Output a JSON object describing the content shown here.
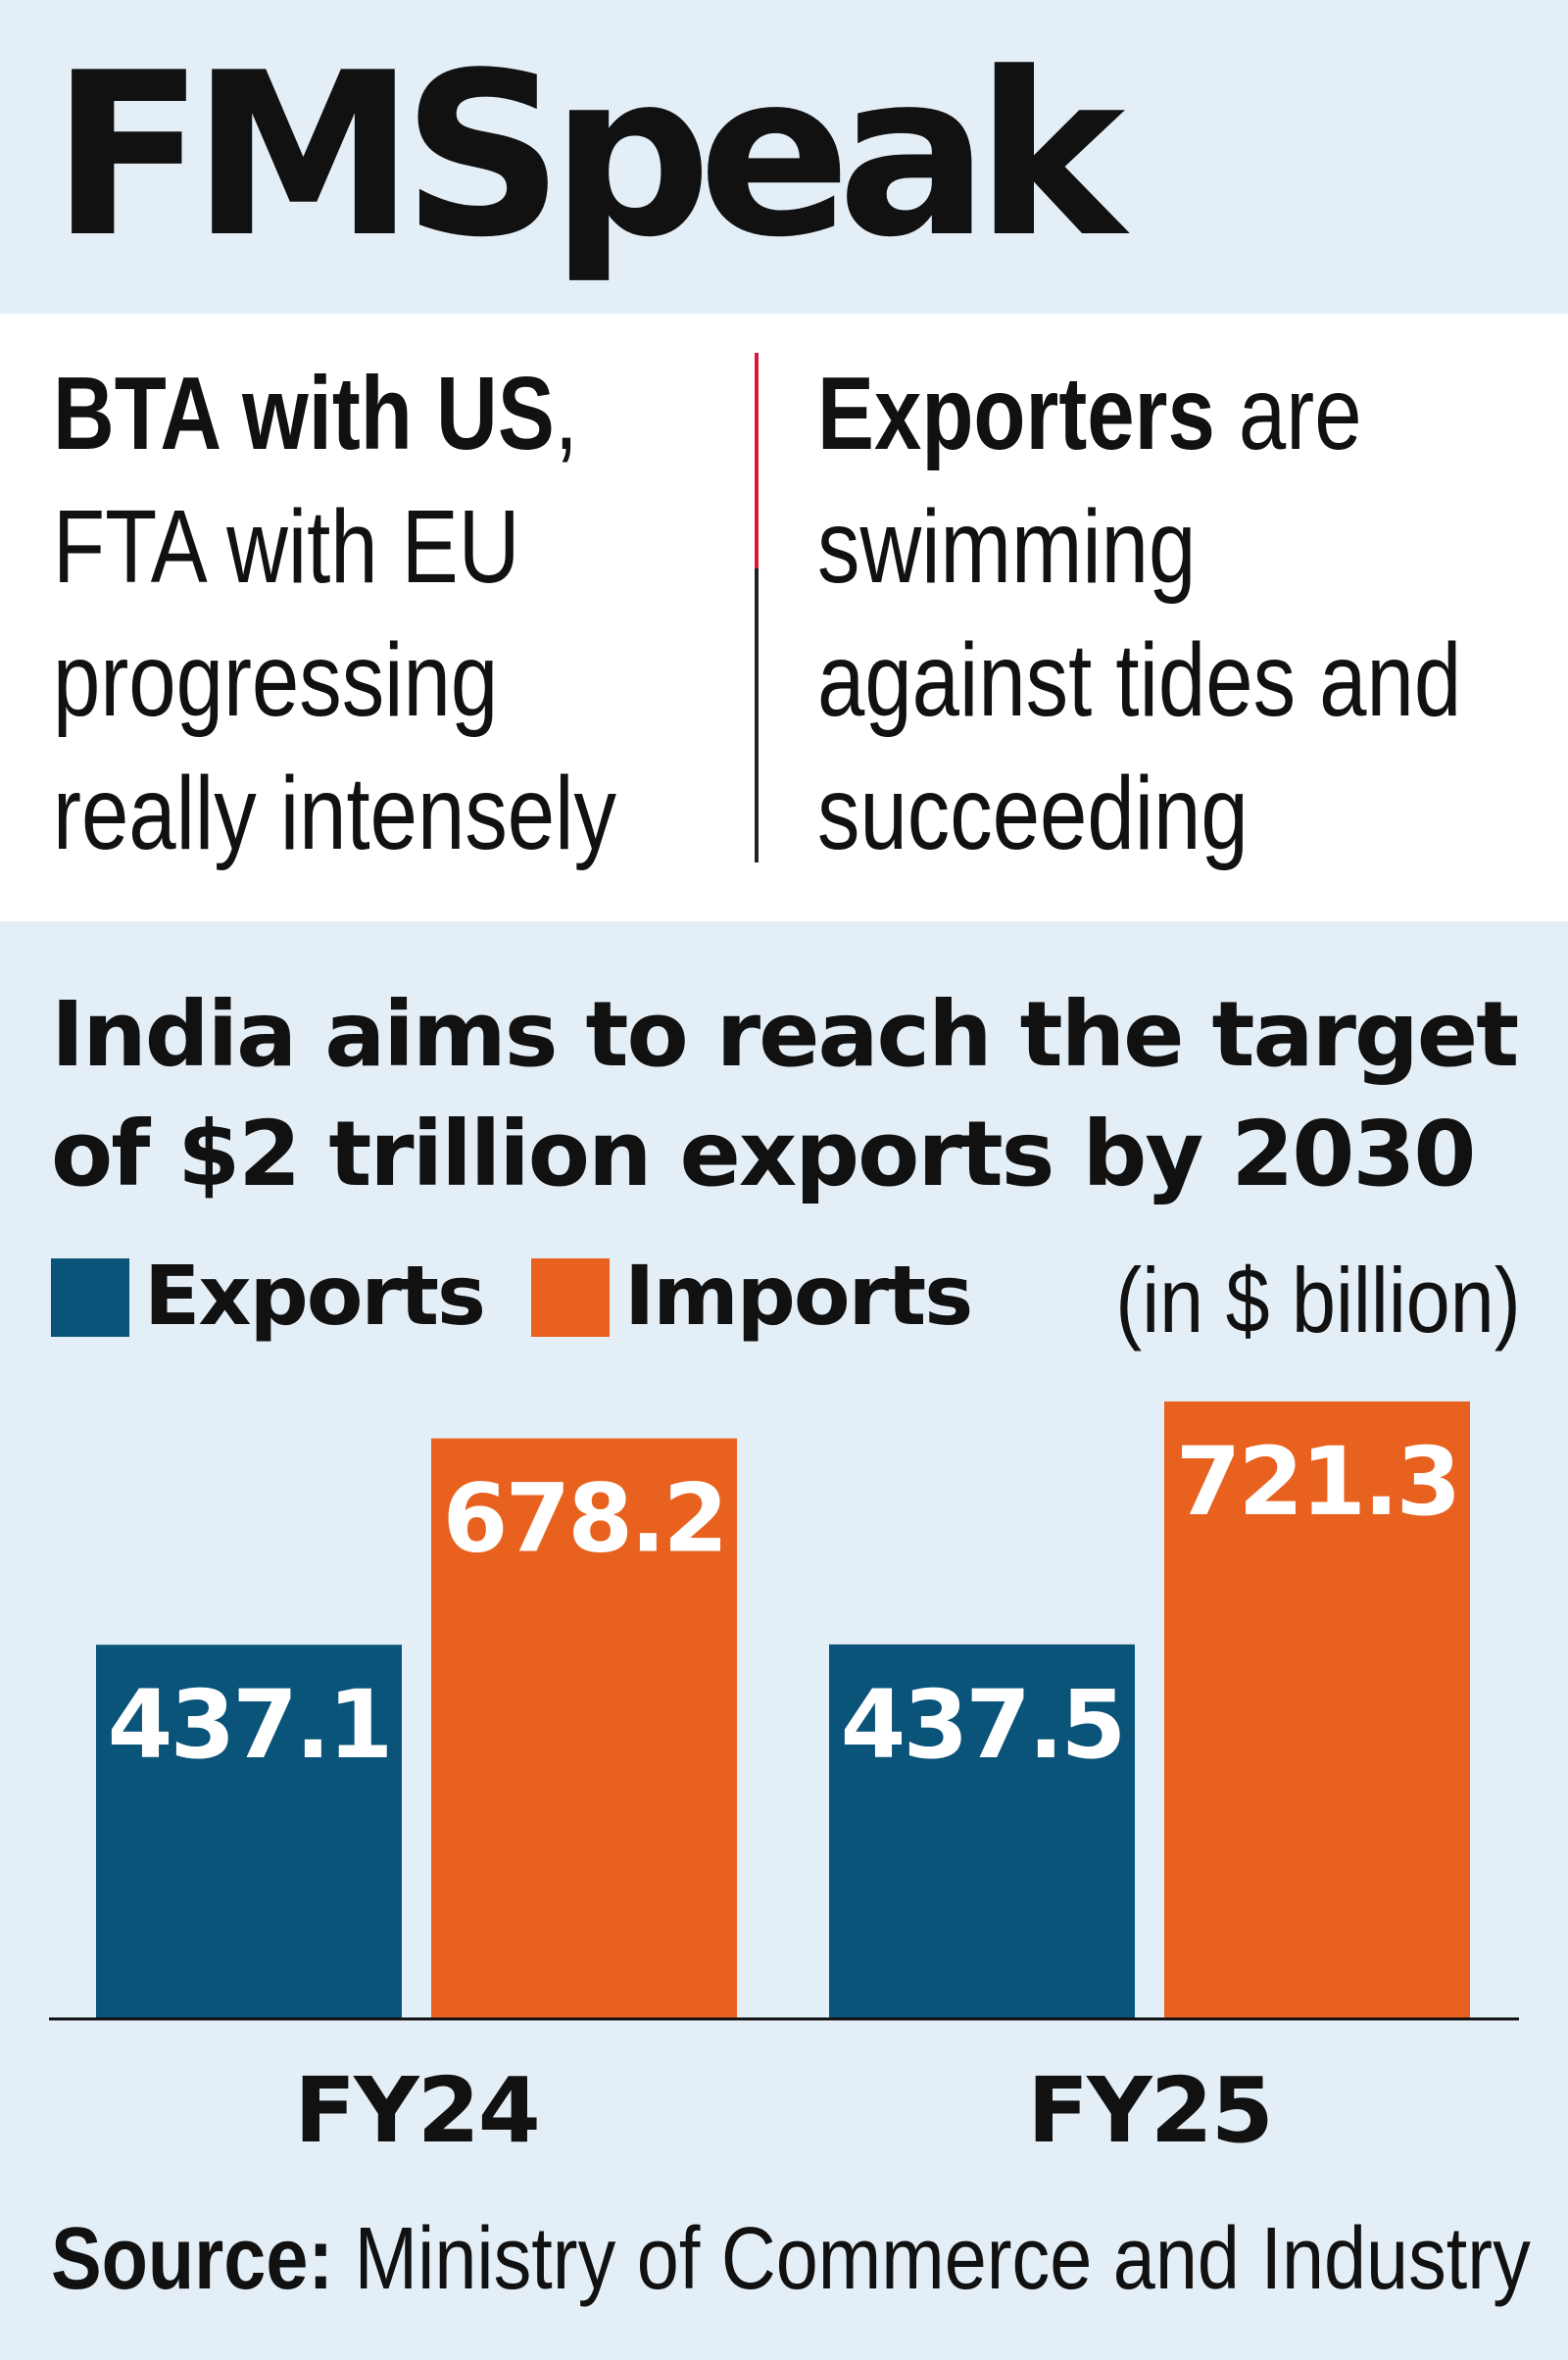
{
  "masthead": "FMSpeak",
  "quotes": {
    "left": {
      "bold": "BTA with US",
      "rest_line1": ",",
      "line2": "FTA with EU",
      "line3": "progressing",
      "line4": "really intensely"
    },
    "right": {
      "bold": "Exporters",
      "rest_line1": " are",
      "line2": "swimming",
      "line3": "against tides and",
      "line4": "succeeding"
    }
  },
  "legend": {
    "exports": "Exports",
    "imports": "Imports",
    "unit": "(in $ billion)"
  },
  "source": {
    "label": "Source:",
    "text": " Ministry of Commerce and Industry"
  },
  "colors": {
    "exports": "#0a5479",
    "imports": "#e8611e",
    "background": "#e4eef6"
  },
  "chart_data": {
    "type": "bar",
    "title": "India aims to reach the target of $2 trillion exports by 2030",
    "xlabel": "",
    "ylabel": "",
    "unit": "(in $ billion)",
    "categories": [
      "FY24",
      "FY25"
    ],
    "series": [
      {
        "name": "Exports",
        "values": [
          437.1,
          437.5
        ],
        "color": "#0a5479"
      },
      {
        "name": "Imports",
        "values": [
          678.2,
          721.3
        ],
        "color": "#e8611e"
      }
    ],
    "value_labels": [
      [
        "437.1",
        "437.5"
      ],
      [
        "678.2",
        "721.3"
      ]
    ],
    "ylim": [
      0,
      721.3
    ],
    "grid": false,
    "legend_position": "top-left"
  }
}
